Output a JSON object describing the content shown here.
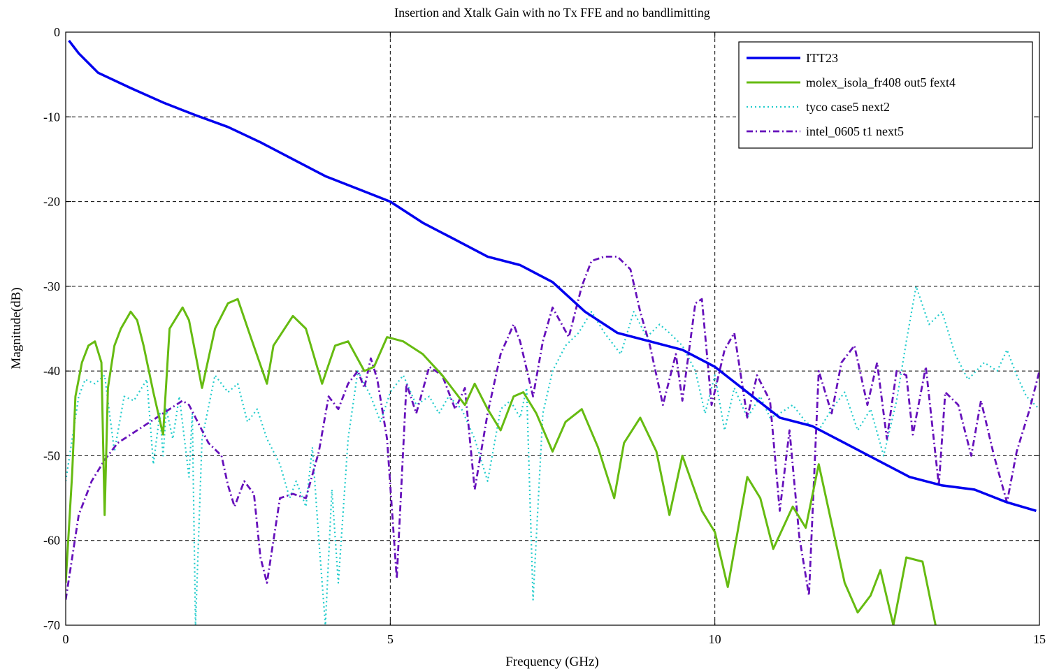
{
  "chart_data": {
    "type": "line",
    "title": "Insertion and Xtalk Gain with no Tx FFE and no bandlimitting",
    "xlabel": "Frequency (GHz)",
    "ylabel": "Magnitude(dB)",
    "xlim": [
      0,
      15
    ],
    "ylim": [
      -70,
      0
    ],
    "xticks": [
      0,
      5,
      10,
      15
    ],
    "yticks": [
      0,
      -10,
      -20,
      -30,
      -40,
      -50,
      -60,
      -70
    ],
    "grid": true,
    "legend_position": "top-right",
    "series": [
      {
        "name": "ITT23",
        "color": "#0000ee",
        "style": "solid",
        "width": 3.5,
        "x": [
          0.05,
          0.2,
          0.5,
          1.0,
          1.5,
          2.0,
          2.5,
          3.0,
          3.5,
          4.0,
          4.5,
          5.0,
          5.5,
          6.0,
          6.5,
          7.0,
          7.5,
          8.0,
          8.5,
          9.0,
          9.5,
          10.0,
          10.5,
          11.0,
          11.5,
          12.0,
          12.5,
          13.0,
          13.5,
          14.0,
          14.5,
          14.95
        ],
        "y": [
          -1.0,
          -2.5,
          -4.8,
          -6.6,
          -8.3,
          -9.8,
          -11.2,
          -13.0,
          -15.0,
          -17.0,
          -18.5,
          -20.0,
          -22.5,
          -24.5,
          -26.5,
          -27.5,
          -29.5,
          -33.0,
          -35.5,
          -36.5,
          -37.5,
          -39.5,
          -42.5,
          -45.5,
          -46.5,
          -48.5,
          -50.5,
          -52.5,
          -53.5,
          -54.0,
          -55.5,
          -56.5
        ]
      },
      {
        "name": "molex_isola_fr408 out5 fext4",
        "color": "#66bb11",
        "style": "solid",
        "width": 3,
        "x": [
          0.0,
          0.1,
          0.15,
          0.25,
          0.35,
          0.45,
          0.55,
          0.6,
          0.65,
          0.75,
          0.85,
          1.0,
          1.1,
          1.2,
          1.35,
          1.5,
          1.6,
          1.8,
          1.9,
          2.1,
          2.3,
          2.5,
          2.65,
          2.85,
          3.1,
          3.2,
          3.5,
          3.7,
          3.95,
          4.15,
          4.35,
          4.6,
          4.75,
          4.95,
          5.2,
          5.5,
          5.8,
          6.0,
          6.15,
          6.3,
          6.5,
          6.7,
          6.9,
          7.05,
          7.25,
          7.5,
          7.7,
          7.95,
          8.2,
          8.45,
          8.6,
          8.85,
          9.1,
          9.3,
          9.5,
          9.8,
          10.0,
          10.2,
          10.5,
          10.7,
          10.9,
          11.2,
          11.4,
          11.6,
          11.8,
          12.0,
          12.2,
          12.4,
          12.55,
          12.75,
          12.95,
          13.2,
          13.4
        ],
        "y": [
          -65.0,
          -52.0,
          -43.0,
          -39.0,
          -37.0,
          -36.5,
          -39.0,
          -57.0,
          -42.0,
          -37.0,
          -35.0,
          -33.0,
          -34.0,
          -37.0,
          -42.5,
          -47.5,
          -35.0,
          -32.5,
          -34.0,
          -42.0,
          -35.0,
          -32.0,
          -31.5,
          -36.0,
          -41.5,
          -37.0,
          -33.5,
          -35.0,
          -41.5,
          -37.0,
          -36.5,
          -40.0,
          -39.5,
          -36.0,
          -36.5,
          -38.0,
          -40.5,
          -42.5,
          -44.0,
          -41.5,
          -44.5,
          -47.0,
          -43.0,
          -42.5,
          -45.0,
          -49.5,
          -46.0,
          -44.5,
          -49.0,
          -55.0,
          -48.5,
          -45.5,
          -49.5,
          -57.0,
          -50.0,
          -56.5,
          -59.0,
          -65.5,
          -52.5,
          -55.0,
          -61.0,
          -56.0,
          -58.5,
          -51.0,
          -58.0,
          -65.0,
          -68.5,
          -66.5,
          -63.5,
          -70.0,
          -62.0,
          -62.5,
          -70.0
        ]
      },
      {
        "name": "tyco case5 next2",
        "color": "#22cccc",
        "style": "dotted",
        "width": 2.2,
        "x": [
          0.0,
          0.1,
          0.2,
          0.3,
          0.45,
          0.6,
          0.75,
          0.9,
          1.05,
          1.25,
          1.35,
          1.45,
          1.5,
          1.55,
          1.65,
          1.75,
          1.9,
          1.95,
          2.0,
          2.1,
          2.3,
          2.5,
          2.65,
          2.8,
          2.95,
          3.1,
          3.3,
          3.45,
          3.55,
          3.7,
          3.8,
          3.9,
          4.0,
          4.1,
          4.2,
          4.35,
          4.5,
          4.7,
          4.85,
          5.0,
          5.2,
          5.4,
          5.6,
          5.75,
          5.9,
          6.1,
          6.3,
          6.5,
          6.7,
          6.85,
          7.0,
          7.1,
          7.2,
          7.35,
          7.5,
          7.7,
          7.9,
          8.1,
          8.3,
          8.55,
          8.75,
          8.95,
          9.15,
          9.3,
          9.5,
          9.7,
          9.85,
          10.0,
          10.15,
          10.3,
          10.5,
          10.7,
          10.85,
          11.0,
          11.2,
          11.4,
          11.6,
          11.8,
          12.0,
          12.2,
          12.4,
          12.6,
          12.8,
          12.95,
          13.1,
          13.3,
          13.5,
          13.7,
          13.9,
          14.15,
          14.35,
          14.5,
          14.65,
          14.8,
          15.0
        ],
        "y": [
          -53.0,
          -48.0,
          -43.0,
          -41.0,
          -41.5,
          -40.5,
          -49.5,
          -43.0,
          -43.5,
          -41.0,
          -51.0,
          -45.0,
          -50.0,
          -44.5,
          -48.0,
          -43.0,
          -52.5,
          -45.0,
          -70.0,
          -48.0,
          -40.5,
          -42.5,
          -41.5,
          -46.0,
          -44.5,
          -48.0,
          -51.0,
          -55.0,
          -53.0,
          -56.0,
          -49.0,
          -60.0,
          -70.0,
          -54.0,
          -65.0,
          -48.0,
          -40.0,
          -43.0,
          -46.0,
          -42.5,
          -40.5,
          -44.0,
          -43.0,
          -45.0,
          -43.0,
          -44.5,
          -48.0,
          -53.0,
          -44.5,
          -43.5,
          -45.5,
          -42.0,
          -67.0,
          -45.0,
          -40.0,
          -37.0,
          -35.5,
          -33.0,
          -35.5,
          -38.0,
          -33.0,
          -36.0,
          -34.5,
          -35.5,
          -37.0,
          -40.0,
          -45.0,
          -40.5,
          -47.0,
          -42.0,
          -45.5,
          -43.0,
          -45.5,
          -45.0,
          -44.0,
          -46.0,
          -47.0,
          -44.5,
          -42.5,
          -47.0,
          -44.5,
          -50.0,
          -43.5,
          -36.5,
          -30.0,
          -34.5,
          -33.0,
          -38.0,
          -41.0,
          -39.0,
          -40.0,
          -37.5,
          -40.5,
          -43.0,
          -44.5
        ]
      },
      {
        "name": "intel_0605 t1 next5",
        "color": "#6611bb",
        "style": "dashdot",
        "width": 2.8,
        "x": [
          0.0,
          0.1,
          0.2,
          0.4,
          0.6,
          0.8,
          1.0,
          1.2,
          1.4,
          1.6,
          1.8,
          1.9,
          2.0,
          2.2,
          2.4,
          2.5,
          2.6,
          2.75,
          2.9,
          3.0,
          3.1,
          3.3,
          3.5,
          3.7,
          3.9,
          4.05,
          4.2,
          4.35,
          4.5,
          4.6,
          4.7,
          4.8,
          4.95,
          5.1,
          5.25,
          5.4,
          5.6,
          5.8,
          6.0,
          6.15,
          6.3,
          6.5,
          6.7,
          6.9,
          7.0,
          7.2,
          7.35,
          7.5,
          7.75,
          7.95,
          8.1,
          8.3,
          8.5,
          8.7,
          8.85,
          9.0,
          9.2,
          9.4,
          9.5,
          9.7,
          9.8,
          9.95,
          10.15,
          10.3,
          10.5,
          10.65,
          10.85,
          11.0,
          11.15,
          11.3,
          11.45,
          11.6,
          11.8,
          11.95,
          12.15,
          12.35,
          12.5,
          12.65,
          12.8,
          12.95,
          13.05,
          13.25,
          13.45,
          13.55,
          13.75,
          13.95,
          14.1,
          14.3,
          14.5,
          14.65,
          14.85,
          15.0
        ],
        "y": [
          -67.0,
          -62.0,
          -57.0,
          -53.0,
          -50.5,
          -48.5,
          -47.5,
          -46.5,
          -45.5,
          -44.5,
          -43.5,
          -44.0,
          -45.5,
          -48.5,
          -50.0,
          -53.5,
          -56.0,
          -53.0,
          -54.5,
          -62.0,
          -65.0,
          -55.0,
          -54.5,
          -55.0,
          -49.5,
          -43.0,
          -44.5,
          -41.5,
          -40.0,
          -42.0,
          -38.5,
          -41.0,
          -48.0,
          -64.5,
          -41.5,
          -45.0,
          -39.5,
          -40.5,
          -44.5,
          -42.0,
          -54.0,
          -45.0,
          -38.0,
          -34.5,
          -36.5,
          -43.0,
          -36.5,
          -32.5,
          -36.0,
          -30.0,
          -27.0,
          -26.5,
          -26.5,
          -28.0,
          -33.0,
          -37.0,
          -44.0,
          -38.0,
          -43.5,
          -32.0,
          -31.5,
          -44.0,
          -37.5,
          -35.5,
          -45.5,
          -40.5,
          -43.5,
          -56.5,
          -47.0,
          -59.5,
          -66.5,
          -40.0,
          -45.0,
          -39.0,
          -37.0,
          -44.0,
          -39.0,
          -48.0,
          -40.0,
          -40.5,
          -47.5,
          -39.5,
          -53.5,
          -42.5,
          -44.0,
          -50.0,
          -43.5,
          -50.0,
          -55.5,
          -49.5,
          -44.5,
          -40.0
        ]
      }
    ]
  }
}
